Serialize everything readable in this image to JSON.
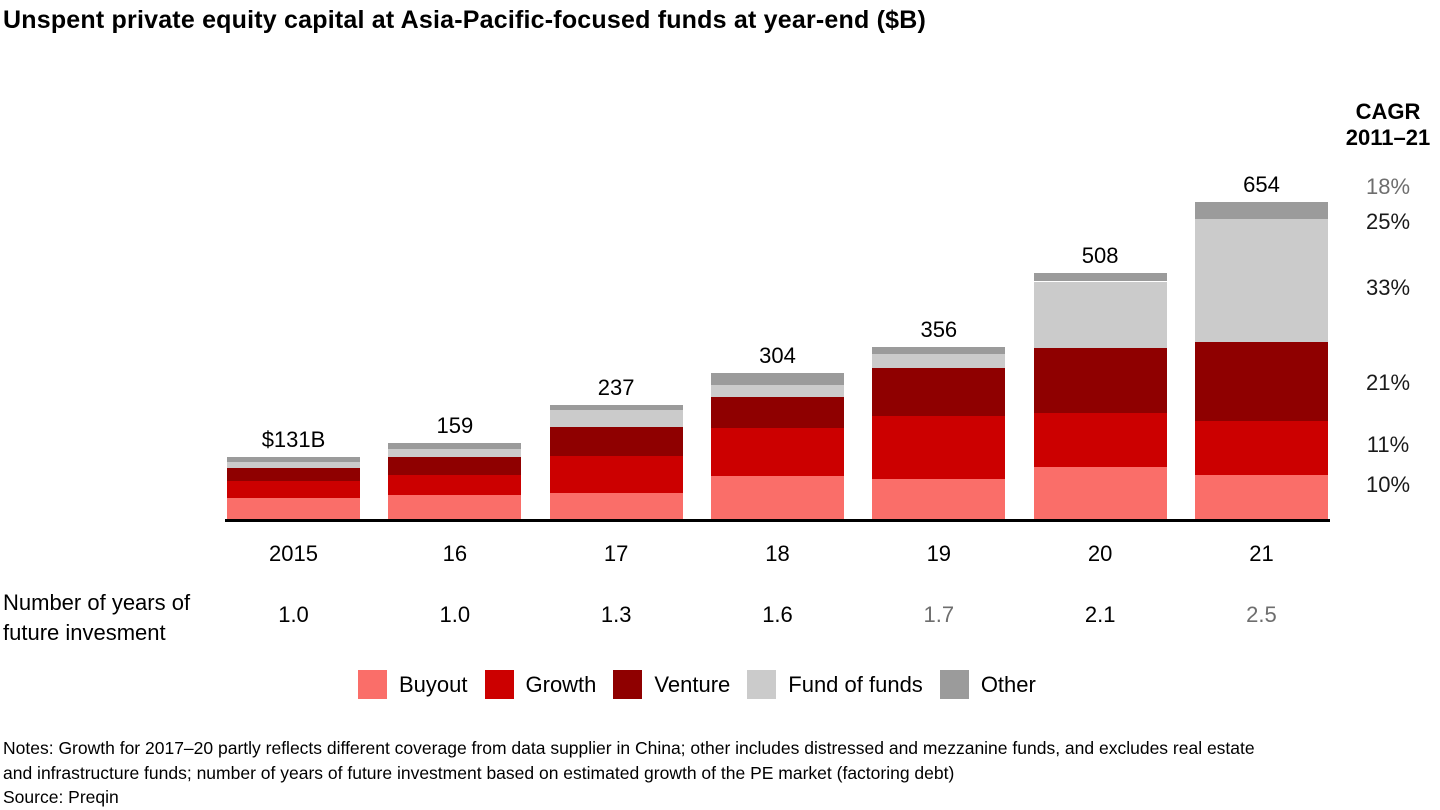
{
  "title": "Unspent private equity capital at Asia-Pacific-focused funds at year-end ($B)",
  "cagr_header": {
    "line1": "CAGR",
    "line2": "2011–21"
  },
  "cagr_values": [
    {
      "label": "18%",
      "applies_to": "Total",
      "color": "#6e6e6e"
    },
    {
      "label": "25%",
      "applies_to": "Other",
      "color": "#1a1a1a"
    },
    {
      "label": "33%",
      "applies_to": "Fund of funds",
      "color": "#1a1a1a"
    },
    {
      "label": "21%",
      "applies_to": "Venture",
      "color": "#1a1a1a"
    },
    {
      "label": "11%",
      "applies_to": "Growth",
      "color": "#1a1a1a"
    },
    {
      "label": "10%",
      "applies_to": "Buyout",
      "color": "#1a1a1a"
    }
  ],
  "chart_data": {
    "type": "bar",
    "stacked": true,
    "title": "Unspent private equity capital at Asia-Pacific-focused funds at year-end ($B)",
    "categories": [
      "2015",
      "16",
      "17",
      "18",
      "19",
      "20",
      "21"
    ],
    "series": [
      {
        "name": "Buyout",
        "color": "#fa6e69",
        "values": [
          47,
          54,
          58,
          93,
          87,
          110,
          94
        ]
      },
      {
        "name": "Growth",
        "color": "#cc0000",
        "values": [
          36,
          41,
          76,
          98,
          129,
          111,
          111
        ]
      },
      {
        "name": "Venture",
        "color": "#8f0000",
        "values": [
          26,
          37,
          58,
          63,
          98,
          133,
          162
        ]
      },
      {
        "name": "Fund of funds",
        "color": "#cbcbcb",
        "values": [
          11,
          16,
          35,
          25,
          29,
          137,
          252
        ]
      },
      {
        "name": "Other",
        "color": "#9b9b9b",
        "values": [
          11,
          11,
          10,
          25,
          13,
          17,
          35
        ]
      }
    ],
    "totals": [
      131,
      159,
      237,
      304,
      356,
      508,
      654
    ],
    "total_labels": [
      "$131B",
      "159",
      "237",
      "304",
      "356",
      "508",
      "654"
    ],
    "xlabel": "",
    "ylabel": "",
    "ylim": [
      0,
      700
    ],
    "grid": false,
    "legend_position": "bottom"
  },
  "future_investment_row": {
    "label_line1": "Number of years of",
    "label_line2": "future invesment",
    "values": [
      {
        "text": "1.0",
        "color": "#000000"
      },
      {
        "text": "1.0",
        "color": "#000000"
      },
      {
        "text": "1.3",
        "color": "#000000"
      },
      {
        "text": "1.6",
        "color": "#000000"
      },
      {
        "text": "1.7",
        "color": "#6e6e6e"
      },
      {
        "text": "2.1",
        "color": "#000000"
      },
      {
        "text": "2.5",
        "color": "#6e6e6e"
      }
    ]
  },
  "legend": [
    {
      "label": "Buyout",
      "color": "#fa6e69"
    },
    {
      "label": "Growth",
      "color": "#cc0000"
    },
    {
      "label": "Venture",
      "color": "#8f0000"
    },
    {
      "label": "Fund of funds",
      "color": "#cbcbcb"
    },
    {
      "label": "Other",
      "color": "#9b9b9b"
    }
  ],
  "notes_line1": "Notes: Growth for 2017–20 partly reflects different coverage from data supplier in China; other includes distressed and mezzanine funds, and excludes real estate",
  "notes_line2": "and infrastructure funds; number of years of future investment based on estimated growth of the PE market (factoring debt)",
  "source": "Source: Preqin"
}
